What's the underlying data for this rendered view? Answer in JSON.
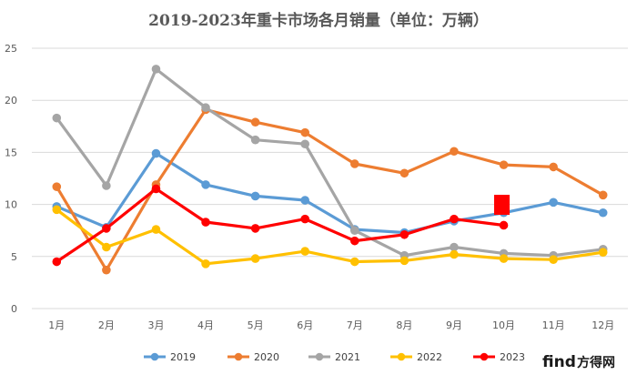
{
  "chart_data": {
    "type": "line",
    "title": "2019-2023年重卡市场各月销量（单位：万辆）",
    "xlabel": "",
    "ylabel": "",
    "categories": [
      "1月",
      "2月",
      "3月",
      "4月",
      "5月",
      "6月",
      "7月",
      "8月",
      "9月",
      "10月",
      "11月",
      "12月"
    ],
    "ylim": [
      0,
      25
    ],
    "yticks": [
      0,
      5,
      10,
      15,
      20,
      25
    ],
    "grid": true,
    "legend_position": "bottom",
    "series": [
      {
        "name": "2019",
        "color": "#5B9BD5",
        "values": [
          9.8,
          7.8,
          14.9,
          11.9,
          10.8,
          10.4,
          7.6,
          7.3,
          8.4,
          9.2,
          10.2,
          9.2
        ]
      },
      {
        "name": "2020",
        "color": "#ED7D31",
        "values": [
          11.7,
          3.7,
          11.9,
          19.1,
          17.9,
          16.9,
          13.9,
          13.0,
          15.1,
          13.8,
          13.6,
          10.9
        ]
      },
      {
        "name": "2021",
        "color": "#A5A5A5",
        "values": [
          18.3,
          11.8,
          23.0,
          19.3,
          16.2,
          15.8,
          7.5,
          5.1,
          5.9,
          5.3,
          5.1,
          5.7
        ]
      },
      {
        "name": "2022",
        "color": "#FFC000",
        "values": [
          9.5,
          5.9,
          7.6,
          4.3,
          4.8,
          5.5,
          4.5,
          4.6,
          5.2,
          4.8,
          4.7,
          5.4
        ]
      },
      {
        "name": "2023",
        "color": "#FF0000",
        "values": [
          4.5,
          7.7,
          11.5,
          8.3,
          7.7,
          8.6,
          6.5,
          7.1,
          8.6,
          8.0,
          null,
          null
        ]
      }
    ]
  },
  "watermark": {
    "part1": "find",
    "part2": "方得网"
  }
}
